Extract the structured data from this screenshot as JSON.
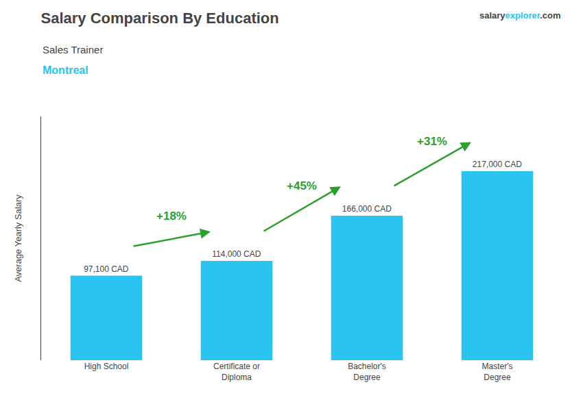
{
  "chart_data": {
    "type": "bar",
    "title": "Salary Comparison By Education",
    "subtitle": [
      "Sales Trainer",
      "Montreal"
    ],
    "watermark": [
      "salary",
      "explorer",
      ".com"
    ],
    "ylabel": "Average Yearly Salary",
    "categories": [
      "High School",
      "Certificate or\nDiploma",
      "Bachelor's\nDegree",
      "Master's\nDegree"
    ],
    "values": [
      97100,
      114000,
      166000,
      217000
    ],
    "value_labels": [
      "97,100 CAD",
      "114,000 CAD",
      "166,000 CAD",
      "217,000 CAD"
    ],
    "data_labels": true,
    "annotations": [
      "+18%",
      "+45%",
      "+31%"
    ],
    "color": "#29c4f0",
    "ylim": [
      0,
      280000
    ],
    "grid": false,
    "tick_labels": "x"
  }
}
